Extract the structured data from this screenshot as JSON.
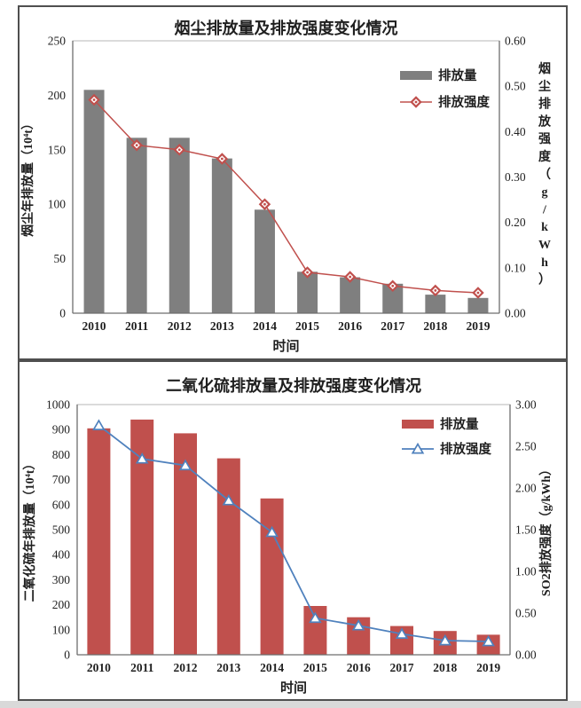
{
  "page": {
    "background": "#ffffff",
    "footer_strip_color": "#d9d9d9"
  },
  "chart_data": [
    {
      "type": "bar+line",
      "title": "烟尘排放量及排放强度变化情况",
      "xlabel": "时间",
      "categories": [
        "2010",
        "2011",
        "2012",
        "2013",
        "2014",
        "2015",
        "2016",
        "2017",
        "2018",
        "2019"
      ],
      "left_axis": {
        "title": "烟尘年排放量（10⁴t）",
        "min": 0,
        "max": 250,
        "step": 50,
        "decimals": 0
      },
      "right_axis": {
        "title": "烟尘排放强度（g/kWh）",
        "min": 0,
        "max": 0.6,
        "step": 0.1,
        "decimals": 2,
        "title_layout": "stacked"
      },
      "legend_position": "top-right-inside",
      "grid": false,
      "series": [
        {
          "name": "排放量",
          "kind": "bar",
          "axis": "left",
          "color": "#7F7F7F",
          "values": [
            205,
            161,
            161,
            142,
            95,
            38,
            33,
            27,
            17,
            14
          ]
        },
        {
          "name": "排放强度",
          "kind": "line",
          "axis": "right",
          "color": "#C0504D",
          "marker": "diamond",
          "values": [
            0.47,
            0.37,
            0.36,
            0.34,
            0.24,
            0.09,
            0.08,
            0.06,
            0.05,
            0.045
          ]
        }
      ]
    },
    {
      "type": "bar+line",
      "title": "二氧化硫排放量及排放强度变化情况",
      "xlabel": "时间",
      "categories": [
        "2010",
        "2011",
        "2012",
        "2013",
        "2014",
        "2015",
        "2016",
        "2017",
        "2018",
        "2019"
      ],
      "left_axis": {
        "title": "二氧化硫年排放量（10⁴t）",
        "min": 0,
        "max": 1000,
        "step": 100,
        "decimals": 0
      },
      "right_axis": {
        "title": "SO2排放强度（g/kWh）",
        "min": 0,
        "max": 3,
        "step": 0.5,
        "decimals": 2,
        "title_layout": "rotated"
      },
      "legend_position": "top-right-inside",
      "grid": false,
      "series": [
        {
          "name": "排放量",
          "kind": "bar",
          "axis": "left",
          "color": "#C0504D",
          "values": [
            905,
            940,
            885,
            785,
            625,
            195,
            150,
            115,
            95,
            80
          ]
        },
        {
          "name": "排放强度",
          "kind": "line",
          "axis": "right",
          "color": "#4F81BD",
          "marker": "triangle",
          "values": [
            2.75,
            2.35,
            2.27,
            1.85,
            1.47,
            0.44,
            0.35,
            0.25,
            0.17,
            0.16
          ]
        }
      ]
    }
  ]
}
